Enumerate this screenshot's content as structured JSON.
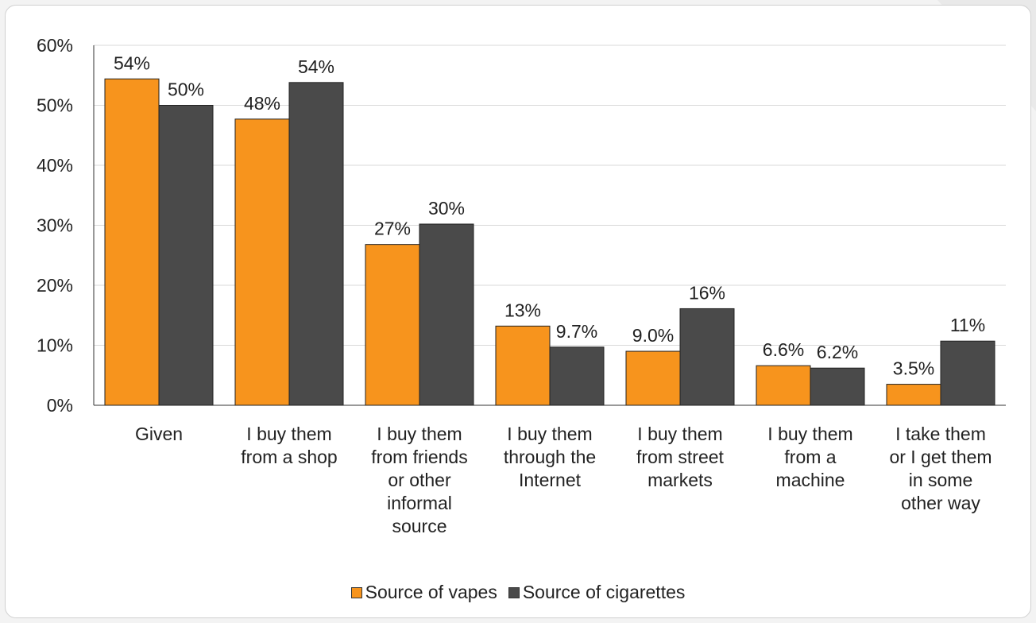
{
  "chart_data": {
    "type": "bar",
    "categories": [
      [
        "Given"
      ],
      [
        "I buy them",
        "from a shop"
      ],
      [
        "I buy them",
        "from friends",
        "or other",
        "informal",
        "source"
      ],
      [
        "I buy them",
        "through the",
        "Internet"
      ],
      [
        "I buy them",
        "from street",
        "markets"
      ],
      [
        "I buy them",
        "from a",
        "machine"
      ],
      [
        "I take them",
        "or I get them",
        "in some",
        "other way"
      ]
    ],
    "series": [
      {
        "name": "Source of vapes",
        "color": "#f7941d",
        "values": [
          54.4,
          47.7,
          26.8,
          13.2,
          9.0,
          6.6,
          3.5
        ],
        "labels": [
          "54%",
          "48%",
          "27%",
          "13%",
          "9.0%",
          "6.6%",
          "3.5%"
        ]
      },
      {
        "name": "Source of cigarettes",
        "color": "#4a4a4a",
        "values": [
          50.0,
          53.8,
          30.2,
          9.7,
          16.1,
          6.2,
          10.7
        ],
        "labels": [
          "50%",
          "54%",
          "30%",
          "9.7%",
          "16%",
          "6.2%",
          "11%"
        ]
      }
    ],
    "yticks": [
      "0%",
      "10%",
      "20%",
      "30%",
      "40%",
      "50%",
      "60%"
    ],
    "ylim": [
      0,
      60
    ],
    "grid": true,
    "legend_position": "bottom"
  }
}
